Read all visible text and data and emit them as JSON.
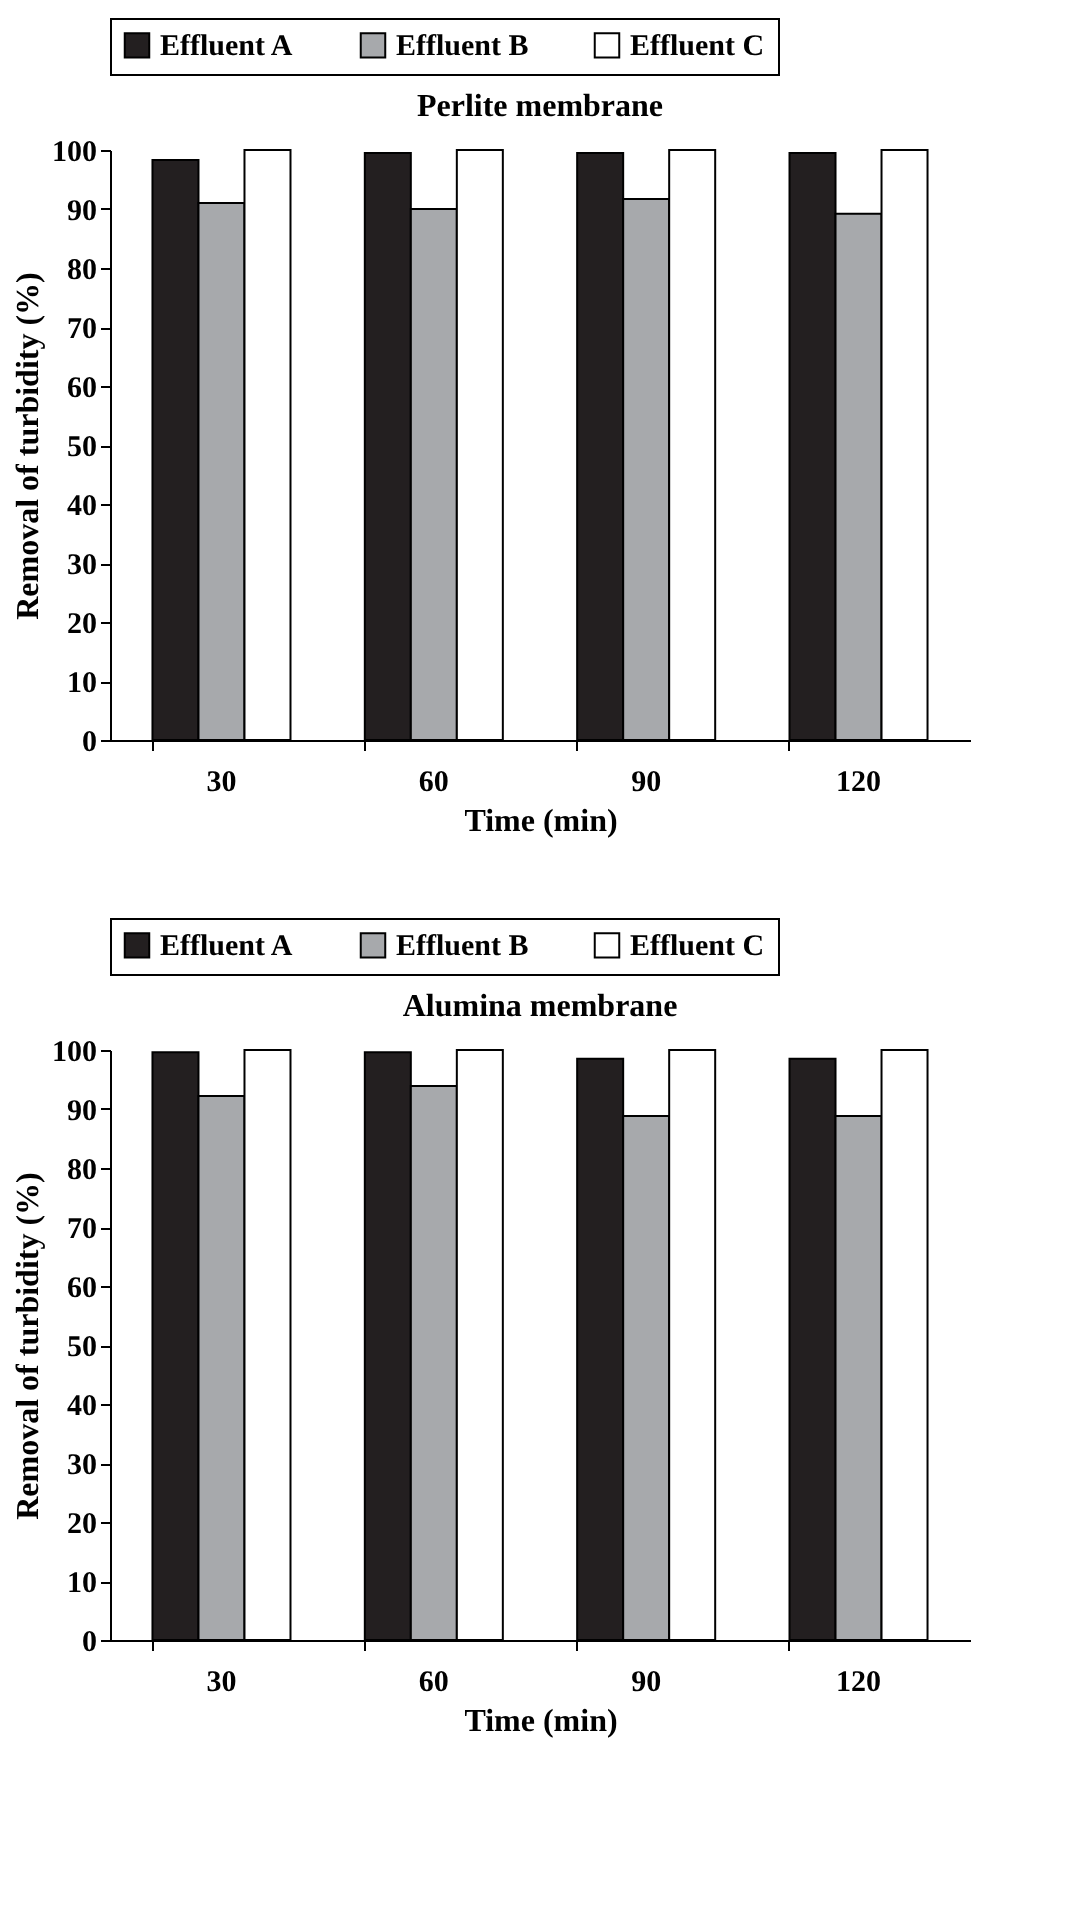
{
  "chart_data": [
    {
      "type": "bar",
      "title": "Perlite membrane",
      "xlabel": "Time (min)",
      "ylabel": "Removal of turbidity (%)",
      "categories": [
        "30",
        "60",
        "90",
        "120"
      ],
      "ylim": [
        0,
        100
      ],
      "yticks": [
        0,
        10,
        20,
        30,
        40,
        50,
        60,
        70,
        80,
        90,
        100
      ],
      "legend": "top",
      "grid": false,
      "series": [
        {
          "name": "Effluent A",
          "color": "#231f20",
          "values": [
            98.3,
            99.5,
            99.5,
            99.5
          ]
        },
        {
          "name": "Effluent B",
          "color": "#a7a9ac",
          "values": [
            91.0,
            90.0,
            91.7,
            89.2
          ]
        },
        {
          "name": "Effluent C",
          "color": "#ffffff",
          "values": [
            100,
            100,
            100,
            100
          ]
        }
      ]
    },
    {
      "type": "bar",
      "title": "Alumina membrane",
      "xlabel": "Time (min)",
      "ylabel": "Removal of turbidity (%)",
      "categories": [
        "30",
        "60",
        "90",
        "120"
      ],
      "ylim": [
        0,
        100
      ],
      "yticks": [
        0,
        10,
        20,
        30,
        40,
        50,
        60,
        70,
        80,
        90,
        100
      ],
      "legend": "top",
      "grid": false,
      "series": [
        {
          "name": "Effluent A",
          "color": "#231f20",
          "values": [
            99.6,
            99.6,
            98.5,
            98.5
          ]
        },
        {
          "name": "Effluent B",
          "color": "#a7a9ac",
          "values": [
            92.2,
            93.9,
            88.8,
            88.8
          ]
        },
        {
          "name": "Effluent C",
          "color": "#ffffff",
          "values": [
            100,
            100,
            100,
            100
          ]
        }
      ]
    }
  ]
}
